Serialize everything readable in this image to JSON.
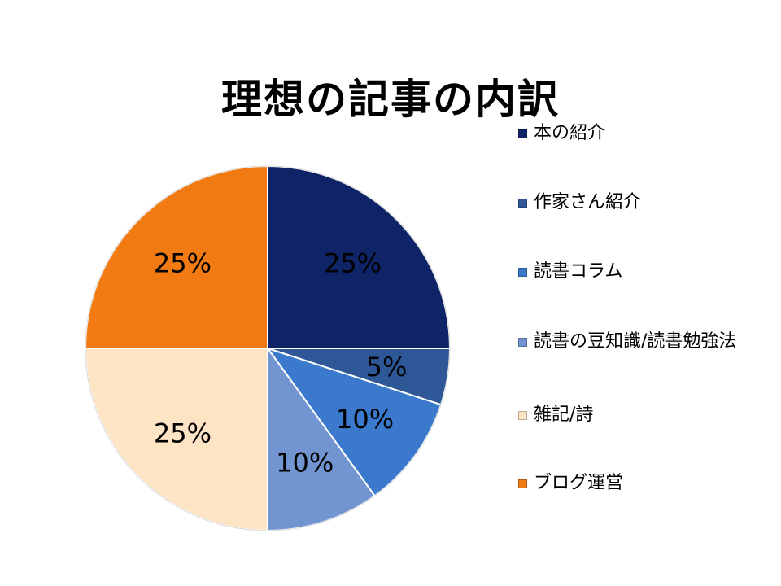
{
  "chart_data": {
    "type": "pie",
    "title": "理想の記事の内訳",
    "start_angle_deg": 0,
    "direction": "clockwise",
    "slices": [
      {
        "label": "本の紹介",
        "value": 25,
        "display": "25%",
        "color": "#0F2467"
      },
      {
        "label": "作家さん紹介",
        "value": 5,
        "display": "5%",
        "color": "#2E5797"
      },
      {
        "label": "読書コラム",
        "value": 10,
        "display": "10%",
        "color": "#3A79CC"
      },
      {
        "label": "読書の豆知識/読書勉強法",
        "value": 10,
        "display": "10%",
        "color": "#7295D2"
      },
      {
        "label": "雑記/詩",
        "value": 25,
        "display": "25%",
        "color": "#FDE4C4"
      },
      {
        "label": "ブログ運営",
        "value": 25,
        "display": "25%",
        "color": "#F27A12"
      }
    ],
    "legend_position": "right"
  }
}
